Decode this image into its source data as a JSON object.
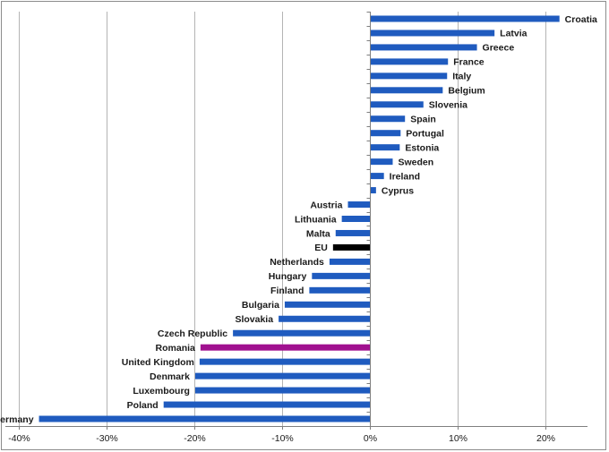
{
  "chart_data": {
    "type": "bar",
    "orientation": "horizontal",
    "title": "",
    "xlabel": "",
    "ylabel": "",
    "xlim": [
      -40,
      25
    ],
    "x_ticks": [
      -40,
      -30,
      -20,
      -10,
      0,
      10,
      20
    ],
    "x_tick_labels": [
      "-40%",
      "-30%",
      "-20%",
      "-10%",
      "0%",
      "10%",
      "20%"
    ],
    "grid": "vertical",
    "unit": "%",
    "colors": {
      "default": "#1f5bbf",
      "highlight_eu": "#000000",
      "highlight_romania": "#a0108f",
      "grid": "#b4b4b4",
      "axis": "#7f7f7f"
    },
    "categories": [
      "Croatia",
      "Latvia",
      "Greece",
      "France",
      "Italy",
      "Belgium",
      "Slovenia",
      "Spain",
      "Portugal",
      "Estonia",
      "Sweden",
      "Ireland",
      "Cyprus",
      "Austria",
      "Lithuania",
      "Malta",
      "EU",
      "Netherlands",
      "Hungary",
      "Finland",
      "Bulgaria",
      "Slovakia",
      "Czech Republic",
      "Romania",
      "United Kingdom",
      "Denmark",
      "Luxembourg",
      "Poland",
      "Germany"
    ],
    "values": [
      21.6,
      14.2,
      12.2,
      8.9,
      8.8,
      8.3,
      6.1,
      4.0,
      3.5,
      3.4,
      2.6,
      1.6,
      0.7,
      -2.5,
      -3.2,
      -3.9,
      -4.2,
      -4.6,
      -6.6,
      -6.9,
      -9.7,
      -10.4,
      -15.6,
      -19.3,
      -19.4,
      -19.9,
      -19.9,
      -23.5,
      -37.7
    ],
    "highlight": {
      "EU": "highlight_eu",
      "Romania": "highlight_romania"
    }
  }
}
